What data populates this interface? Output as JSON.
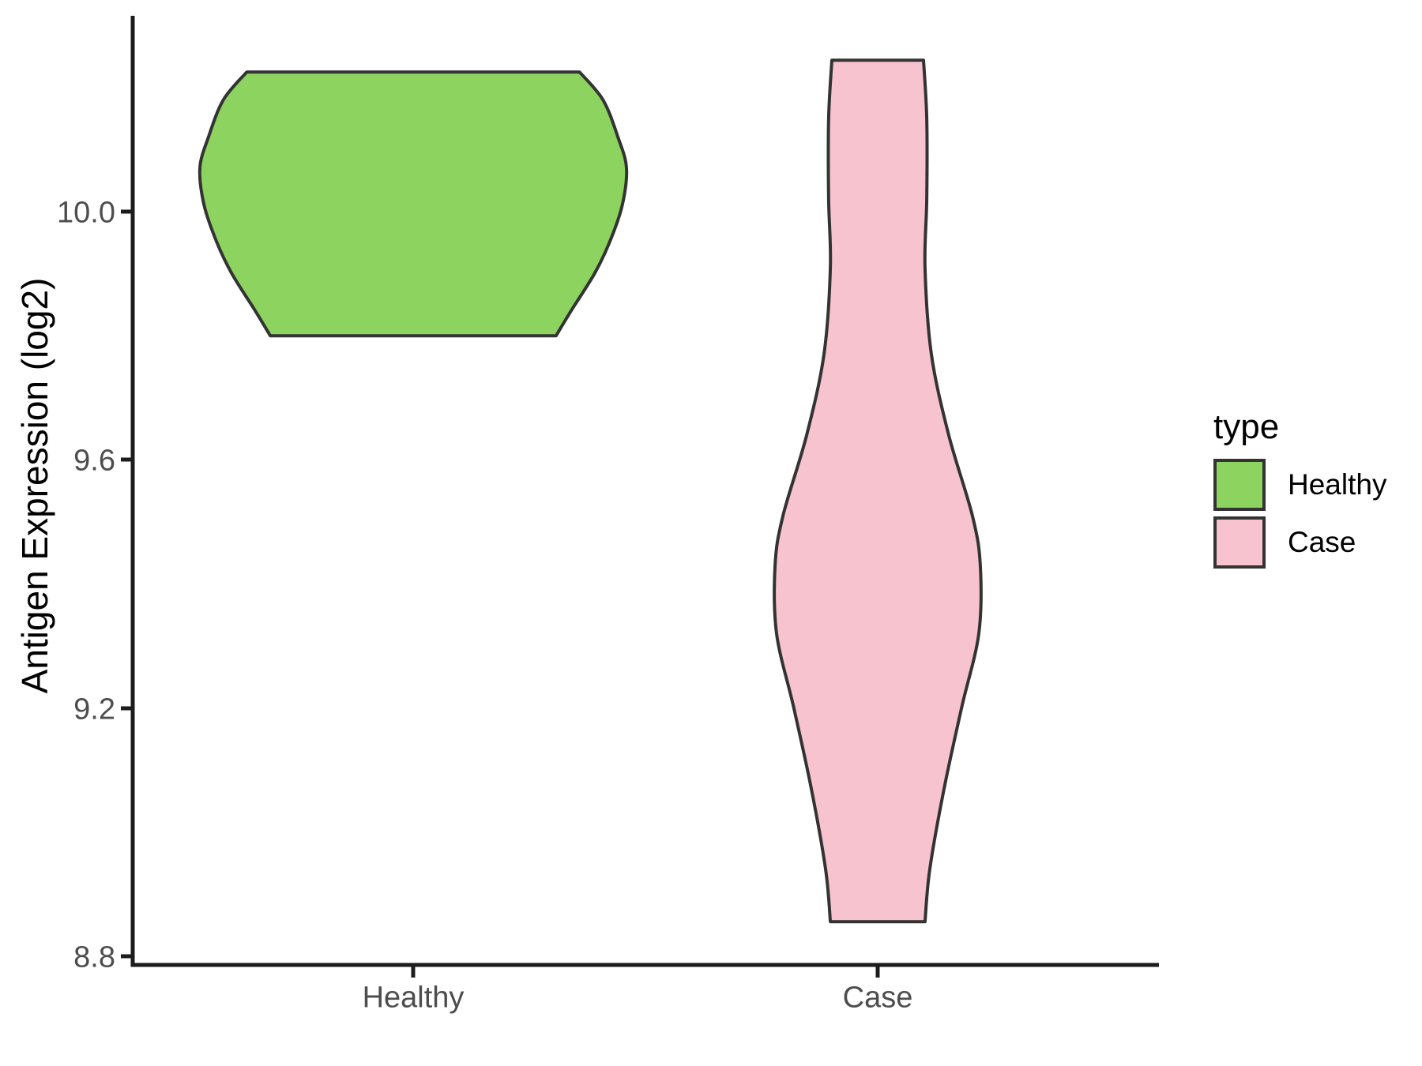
{
  "chart_data": {
    "type": "violin",
    "title": "",
    "xlabel": "",
    "ylabel": "Antigen Expression (log2)",
    "categories": [
      "Healthy",
      "Case"
    ],
    "x_tick_labels": [
      "Healthy",
      "Case"
    ],
    "y_ticks": [
      {
        "value": 10.0,
        "label": "10.0"
      },
      {
        "value": 9.6,
        "label": "9.6"
      },
      {
        "value": 9.2,
        "label": "9.2"
      },
      {
        "value": 8.8,
        "label": "8.8"
      }
    ],
    "ylim": [
      8.79,
      10.32
    ],
    "grid": false,
    "panel_background": "#ffffff",
    "colors": {
      "axis_line": "#1c1c1c",
      "tick_text": "#4d4d4d",
      "axis_title_text": "#000000",
      "violin_outline": "#333333",
      "healthy_fill": "#8cd35f",
      "case_fill": "#f7c3cf"
    },
    "legend": {
      "title": "type",
      "position": "right",
      "entries": [
        {
          "label": "Healthy",
          "color": "#8cd35f"
        },
        {
          "label": "Case",
          "color": "#f7c3cf"
        }
      ]
    },
    "profile_format": [
      "expression_value_log2",
      "relative_halfwidth_0_to_1"
    ],
    "series": [
      {
        "name": "Healthy",
        "category": "Healthy",
        "fill": "#8cd35f",
        "outline": "#333333",
        "value_range": [
          9.8,
          10.23
        ],
        "profile": [
          [
            10.225,
            0.78
          ],
          [
            10.18,
            0.89
          ],
          [
            10.12,
            0.96
          ],
          [
            10.07,
            1.0
          ],
          [
            10.01,
            0.98
          ],
          [
            9.95,
            0.92
          ],
          [
            9.9,
            0.85
          ],
          [
            9.84,
            0.74
          ],
          [
            9.8,
            0.67
          ]
        ]
      },
      {
        "name": "Case",
        "category": "Case",
        "fill": "#f7c3cf",
        "outline": "#333333",
        "value_range": [
          8.86,
          10.24
        ],
        "profile": [
          [
            10.244,
            0.215
          ],
          [
            10.15,
            0.23
          ],
          [
            10.02,
            0.23
          ],
          [
            9.91,
            0.222
          ],
          [
            9.77,
            0.252
          ],
          [
            9.64,
            0.333
          ],
          [
            9.51,
            0.444
          ],
          [
            9.43,
            0.481
          ],
          [
            9.32,
            0.474
          ],
          [
            9.2,
            0.393
          ],
          [
            9.07,
            0.311
          ],
          [
            8.94,
            0.244
          ],
          [
            8.856,
            0.222
          ]
        ]
      }
    ]
  }
}
